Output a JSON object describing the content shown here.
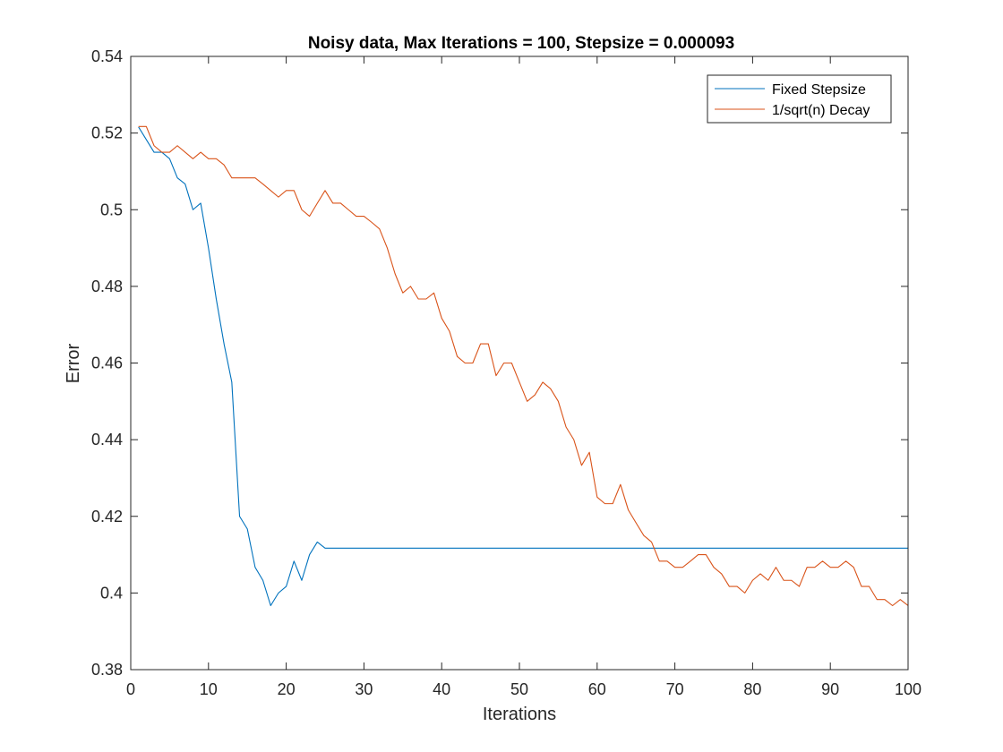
{
  "chart_data": {
    "type": "line",
    "title": "Noisy data, Max Iterations = 100, Stepsize = 0.000093",
    "xlabel": "Iterations",
    "ylabel": "Error",
    "xlim": [
      0,
      100
    ],
    "ylim": [
      0.38,
      0.54
    ],
    "xticks": [
      0,
      10,
      20,
      30,
      40,
      50,
      60,
      70,
      80,
      90,
      100
    ],
    "xtick_labels": [
      "0",
      "10",
      "20",
      "30",
      "40",
      "50",
      "60",
      "70",
      "80",
      "90",
      "100"
    ],
    "yticks": [
      0.38,
      0.4,
      0.42,
      0.44,
      0.46,
      0.48,
      0.5,
      0.52,
      0.54
    ],
    "ytick_labels": [
      "0.38",
      "0.4",
      "0.42",
      "0.44",
      "0.46",
      "0.48",
      "0.5",
      "0.52",
      "0.54"
    ],
    "grid": false,
    "legend_position": "top-right",
    "series": [
      {
        "name": "Fixed Stepsize",
        "color": "#0072BD",
        "x": [
          1,
          2,
          3,
          4,
          5,
          6,
          7,
          8,
          9,
          10,
          11,
          12,
          13,
          14,
          15,
          16,
          17,
          18,
          19,
          20,
          21,
          22,
          23,
          24,
          25,
          26,
          27,
          28,
          29,
          30,
          31,
          32,
          33,
          34,
          35,
          36,
          37,
          38,
          39,
          40,
          41,
          42,
          43,
          44,
          45,
          46,
          47,
          48,
          49,
          50,
          51,
          52,
          53,
          54,
          55,
          56,
          57,
          58,
          59,
          60,
          61,
          62,
          63,
          64,
          65,
          66,
          67,
          68,
          69,
          70,
          71,
          72,
          73,
          74,
          75,
          76,
          77,
          78,
          79,
          80,
          81,
          82,
          83,
          84,
          85,
          86,
          87,
          88,
          89,
          90,
          91,
          92,
          93,
          94,
          95,
          96,
          97,
          98,
          99,
          100
        ],
        "y": [
          0.5216,
          0.5183,
          0.515,
          0.515,
          0.5133,
          0.5083,
          0.5067,
          0.5,
          0.5017,
          0.49,
          0.4767,
          0.465,
          0.455,
          0.42,
          0.4167,
          0.4067,
          0.4033,
          0.3967,
          0.4,
          0.4017,
          0.4083,
          0.4033,
          0.41,
          0.4133,
          0.4117,
          0.4117,
          0.4117,
          0.4117,
          0.4117,
          0.4117,
          0.4117,
          0.4117,
          0.4117,
          0.4117,
          0.4117,
          0.4117,
          0.4117,
          0.4117,
          0.4117,
          0.4117,
          0.4117,
          0.4117,
          0.4117,
          0.4117,
          0.4117,
          0.4117,
          0.4117,
          0.4117,
          0.4117,
          0.4117,
          0.4117,
          0.4117,
          0.4117,
          0.4117,
          0.4117,
          0.4117,
          0.4117,
          0.4117,
          0.4117,
          0.4117,
          0.4117,
          0.4117,
          0.4117,
          0.4117,
          0.4117,
          0.4117,
          0.4117,
          0.4117,
          0.4117,
          0.4117,
          0.4117,
          0.4117,
          0.4117,
          0.4117,
          0.4117,
          0.4117,
          0.4117,
          0.4117,
          0.4117,
          0.4117,
          0.4117,
          0.4117,
          0.4117,
          0.4117,
          0.4117,
          0.4117,
          0.4117,
          0.4117,
          0.4117,
          0.4117,
          0.4117,
          0.4117,
          0.4117,
          0.4117,
          0.4117,
          0.4117,
          0.4117,
          0.4117,
          0.4117,
          0.4117
        ]
      },
      {
        "name": "1/sqrt(n) Decay",
        "color": "#D95319",
        "x": [
          1,
          2,
          3,
          4,
          5,
          6,
          7,
          8,
          9,
          10,
          11,
          12,
          13,
          14,
          15,
          16,
          17,
          18,
          19,
          20,
          21,
          22,
          23,
          24,
          25,
          26,
          27,
          28,
          29,
          30,
          31,
          32,
          33,
          34,
          35,
          36,
          37,
          38,
          39,
          40,
          41,
          42,
          43,
          44,
          45,
          46,
          47,
          48,
          49,
          50,
          51,
          52,
          53,
          54,
          55,
          56,
          57,
          58,
          59,
          60,
          61,
          62,
          63,
          64,
          65,
          66,
          67,
          68,
          69,
          70,
          71,
          72,
          73,
          74,
          75,
          76,
          77,
          78,
          79,
          80,
          81,
          82,
          83,
          84,
          85,
          86,
          87,
          88,
          89,
          90,
          91,
          92,
          93,
          94,
          95,
          96,
          97,
          98,
          99,
          100
        ],
        "y": [
          0.5217,
          0.5217,
          0.5167,
          0.515,
          0.515,
          0.5167,
          0.515,
          0.5133,
          0.515,
          0.5133,
          0.5133,
          0.5117,
          0.5083,
          0.5083,
          0.5083,
          0.5083,
          0.5067,
          0.505,
          0.5033,
          0.505,
          0.505,
          0.5,
          0.4983,
          0.5017,
          0.505,
          0.5017,
          0.5017,
          0.5,
          0.4983,
          0.4983,
          0.4967,
          0.495,
          0.49,
          0.4833,
          0.4783,
          0.48,
          0.4767,
          0.4767,
          0.4783,
          0.4717,
          0.4683,
          0.4617,
          0.46,
          0.46,
          0.465,
          0.465,
          0.4567,
          0.46,
          0.46,
          0.455,
          0.45,
          0.4517,
          0.455,
          0.4533,
          0.45,
          0.4433,
          0.44,
          0.4333,
          0.4367,
          0.425,
          0.4233,
          0.4233,
          0.4283,
          0.4217,
          0.4183,
          0.415,
          0.4133,
          0.4083,
          0.4083,
          0.4067,
          0.4067,
          0.4083,
          0.41,
          0.41,
          0.4067,
          0.405,
          0.4017,
          0.4017,
          0.4,
          0.4033,
          0.405,
          0.4033,
          0.4067,
          0.4033,
          0.4033,
          0.4017,
          0.4067,
          0.4067,
          0.4083,
          0.4067,
          0.4067,
          0.4083,
          0.4067,
          0.4017,
          0.4017,
          0.3983,
          0.3983,
          0.3967,
          0.3983,
          0.3967
        ]
      }
    ]
  }
}
